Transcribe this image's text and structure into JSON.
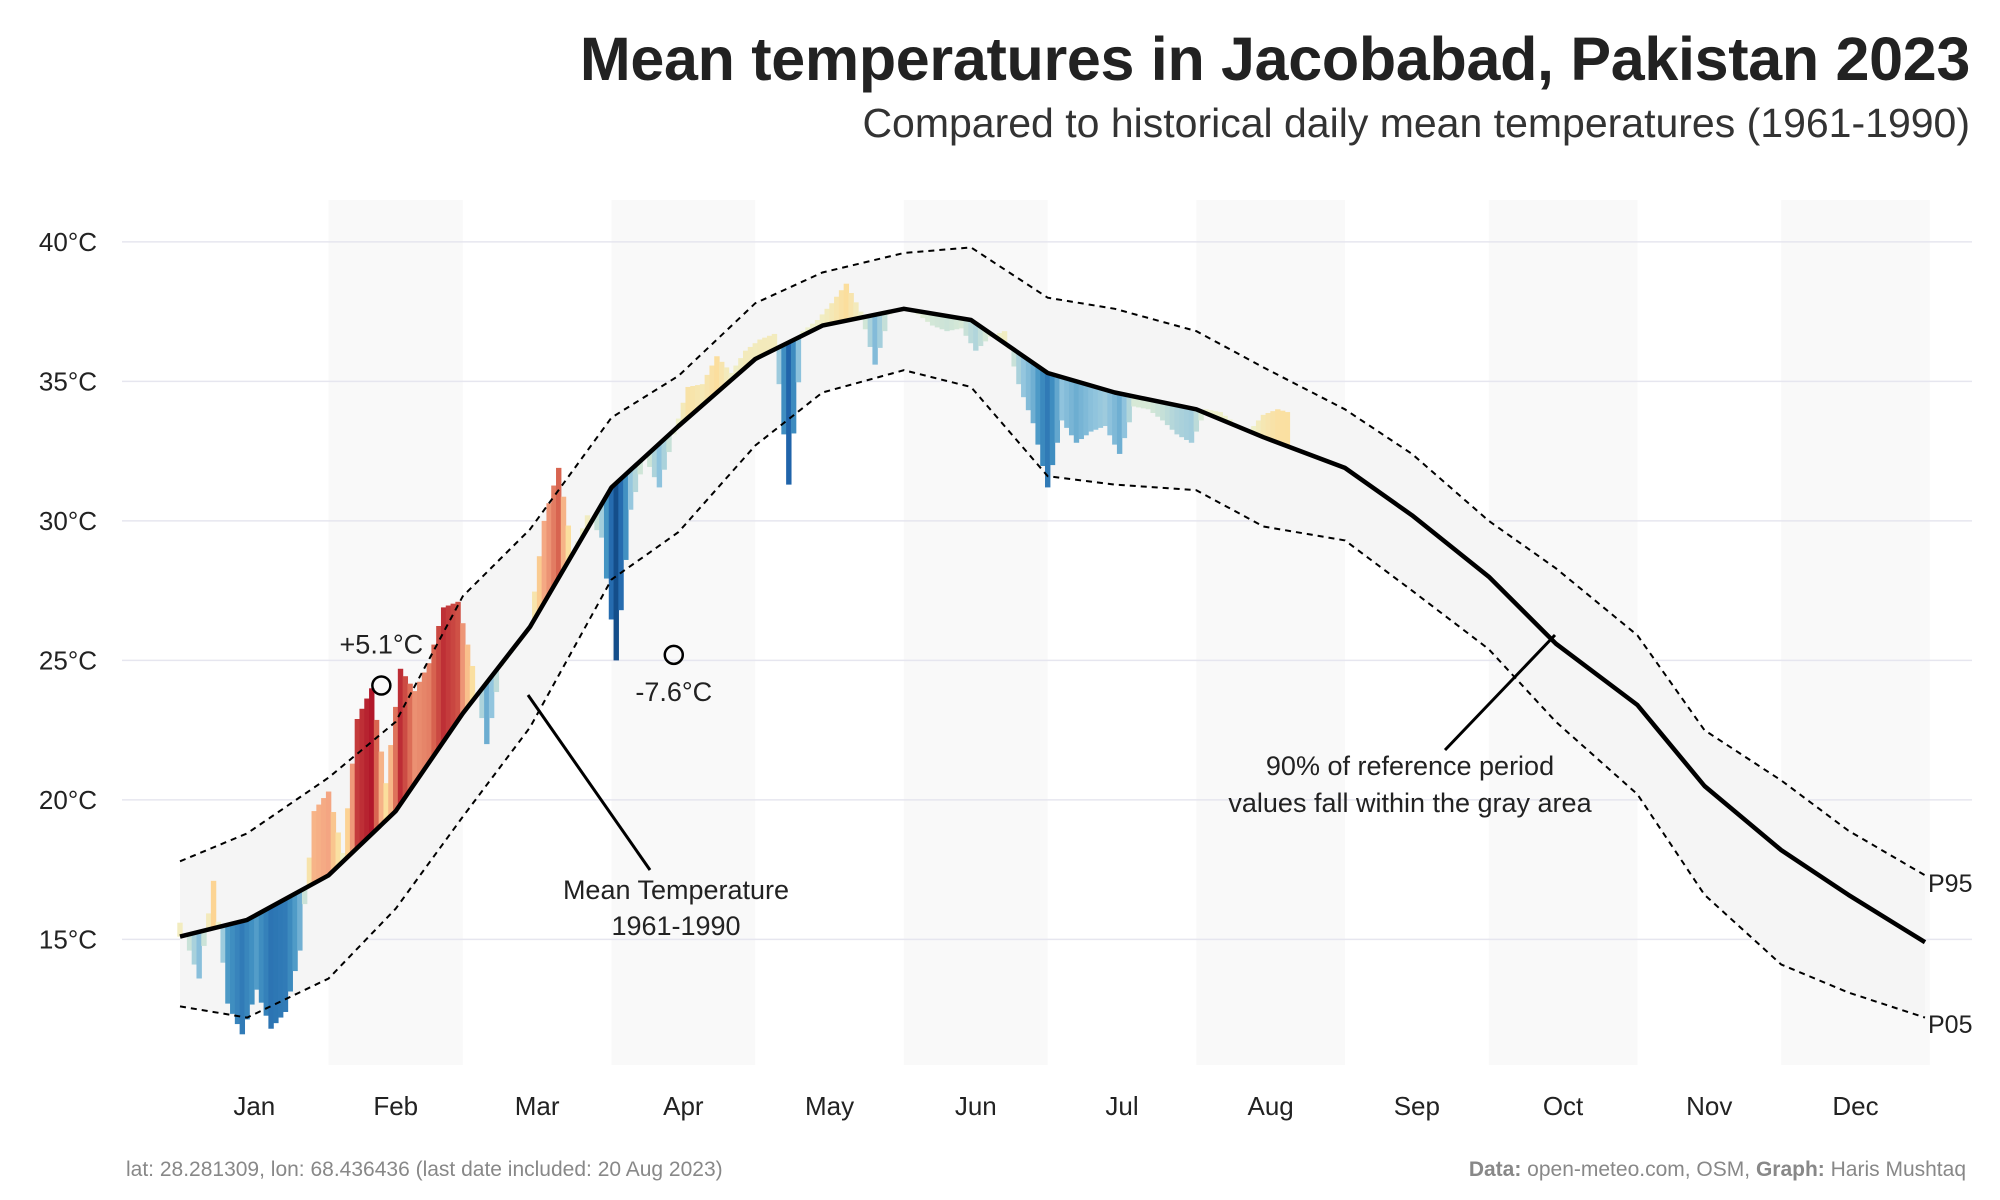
{
  "title": "Mean temperatures in Jacobabad, Pakistan 2023",
  "subtitle": "Compared to historical daily mean temperatures (1961-1990)",
  "footer": {
    "left": "lat: 28.281309, lon: 68.436436 (last date included: 20 Aug 2023)",
    "data_label": "Data:",
    "data_value": " open-meteo.com, OSM, ",
    "graph_label": "Graph:",
    "graph_value": " Haris Mushtaq"
  },
  "annotations": {
    "max_dev": "+5.1°C",
    "min_dev": "-7.6°C",
    "mean_label_1": "Mean Temperature",
    "mean_label_2": "1961-1990",
    "band_label_1": "90% of reference period",
    "band_label_2": "values fall within the gray area",
    "p95": "P95",
    "p05": "P05"
  },
  "chart_data": {
    "type": "area",
    "title": "Mean temperatures in Jacobabad, Pakistan 2023",
    "subtitle": "Compared to historical daily mean temperatures (1961-1990)",
    "xlabel": "",
    "ylabel": "",
    "ylim": [
      10.5,
      41.5
    ],
    "yticks": [
      15,
      20,
      25,
      30,
      35,
      40
    ],
    "ytick_labels": [
      "15°C",
      "20°C",
      "25°C",
      "30°C",
      "35°C",
      "40°C"
    ],
    "months": [
      "Jan",
      "Feb",
      "Mar",
      "Apr",
      "May",
      "Jun",
      "Jul",
      "Aug",
      "Sep",
      "Oct",
      "Nov",
      "Dec"
    ],
    "grid": true,
    "colors": {
      "band": "#f5f5f5",
      "mean_line": "#000000",
      "grid": "#e6e6ef",
      "shade": "#f9f9f9",
      "warm_max": "#b2182b",
      "cool_max": "#053061"
    },
    "reference": {
      "x_day": [
        1,
        15,
        32,
        46,
        60,
        74,
        91,
        105,
        121,
        135,
        152,
        166,
        182,
        196,
        213,
        227,
        244,
        258,
        274,
        288,
        305,
        319,
        335,
        349,
        365
      ],
      "mean": [
        15.1,
        15.7,
        17.3,
        19.6,
        23.1,
        26.2,
        31.2,
        33.4,
        35.8,
        37.0,
        37.6,
        37.2,
        35.3,
        34.6,
        34.0,
        33.0,
        31.9,
        30.2,
        28.0,
        25.6,
        23.4,
        20.5,
        18.2,
        16.6,
        14.9
      ],
      "p95": [
        17.8,
        18.8,
        20.8,
        22.8,
        27.3,
        29.7,
        33.7,
        35.2,
        37.8,
        38.9,
        39.6,
        39.8,
        38.0,
        37.6,
        36.8,
        35.5,
        34.0,
        32.4,
        30.0,
        28.3,
        25.9,
        22.5,
        20.7,
        18.9,
        17.3
      ],
      "p05": [
        12.6,
        12.2,
        13.6,
        16.1,
        19.4,
        22.6,
        27.9,
        29.6,
        32.7,
        34.6,
        35.4,
        34.8,
        31.6,
        31.3,
        31.1,
        29.8,
        29.3,
        27.5,
        25.4,
        22.8,
        20.2,
        16.6,
        14.1,
        13.1,
        12.2
      ]
    },
    "observed_2023": {
      "x_day": [
        1,
        5,
        8,
        11,
        14,
        17,
        20,
        23,
        26,
        29,
        32,
        35,
        38,
        41,
        44,
        47,
        50,
        53,
        56,
        59,
        62,
        65,
        68,
        71,
        74,
        77,
        80,
        83,
        86,
        89,
        92,
        95,
        98,
        101,
        104,
        107,
        110,
        113,
        116,
        119,
        122,
        125,
        128,
        131,
        134,
        137,
        140,
        143,
        146,
        149,
        152,
        155,
        158,
        161,
        164,
        167,
        170,
        173,
        176,
        179,
        182,
        185,
        188,
        191,
        194,
        197,
        200,
        203,
        206,
        209,
        212,
        215,
        218,
        221,
        224,
        227,
        230,
        232
      ],
      "temp": [
        15.6,
        13.6,
        17.1,
        12.7,
        11.6,
        13.2,
        11.8,
        12.4,
        14.6,
        19.6,
        20.3,
        18.1,
        22.9,
        24.0,
        20.6,
        24.7,
        23.9,
        24.9,
        26.9,
        27.1,
        24.8,
        22.0,
        24.8,
        25.5,
        26.2,
        30.0,
        31.9,
        28.8,
        30.2,
        29.4,
        25.0,
        30.4,
        32.3,
        31.2,
        33.1,
        34.8,
        34.9,
        35.9,
        35.3,
        36.1,
        36.5,
        36.7,
        31.3,
        36.8,
        37.2,
        37.8,
        38.5,
        37.5,
        35.6,
        37.4,
        37.6,
        37.4,
        37.0,
        36.8,
        36.9,
        36.1,
        36.6,
        36.8,
        34.9,
        33.5,
        31.2,
        33.6,
        32.8,
        33.2,
        33.4,
        32.4,
        34.1,
        34.0,
        33.6,
        33.1,
        32.8,
        34.0,
        33.9,
        33.5,
        33.2,
        33.8,
        34.0,
        33.9
      ]
    },
    "extremes": [
      {
        "label": "+5.1°C",
        "x_day": 43,
        "temp": 24.1
      },
      {
        "label": "-7.6°C",
        "x_day": 104,
        "temp": 25.2
      }
    ]
  }
}
